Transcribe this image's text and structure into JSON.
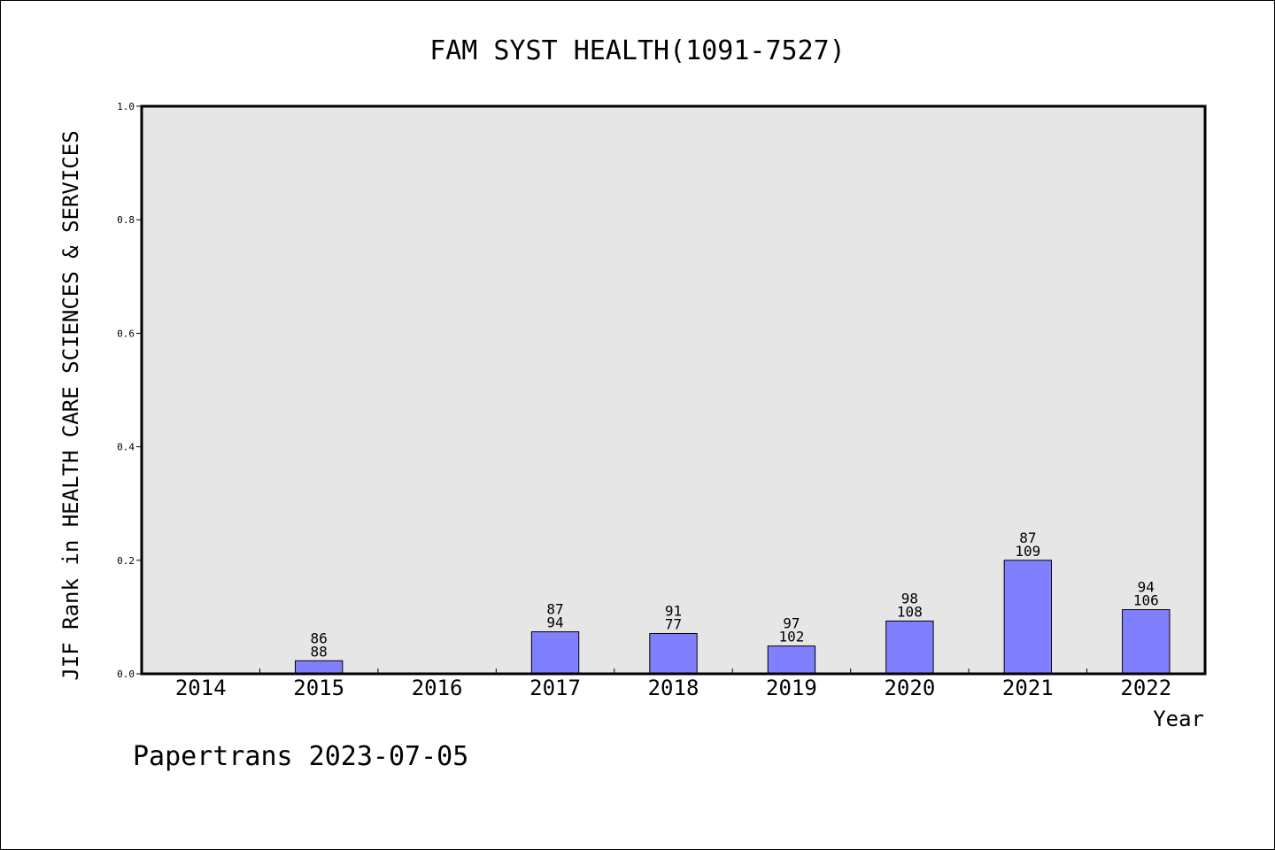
{
  "chart_data": {
    "type": "bar",
    "title": "FAM SYST HEALTH(1091-7527)",
    "xlabel": "Year",
    "ylabel": "JIF Rank in HEALTH CARE SCIENCES & SERVICES",
    "categories": [
      "2014",
      "2015",
      "2016",
      "2017",
      "2018",
      "2019",
      "2020",
      "2021",
      "2022"
    ],
    "values": [
      null,
      0.023,
      null,
      0.074,
      0.071,
      0.049,
      0.093,
      0.2,
      0.113
    ],
    "labels_top": [
      "",
      "86",
      "",
      "87",
      "91",
      "97",
      "98",
      "87",
      "94"
    ],
    "labels_bottom": [
      "",
      "88",
      "",
      "94",
      "77",
      "102",
      "108",
      "109",
      "106"
    ],
    "ylim": [
      0,
      1.0
    ],
    "yticks": [
      "0.0",
      "0.2",
      "0.4",
      "0.6",
      "0.8",
      "1.0"
    ],
    "grid": false,
    "bar_color": "#8080ff",
    "plot_background": "#e6e6e6"
  },
  "footer": "Papertrans 2023-07-05"
}
